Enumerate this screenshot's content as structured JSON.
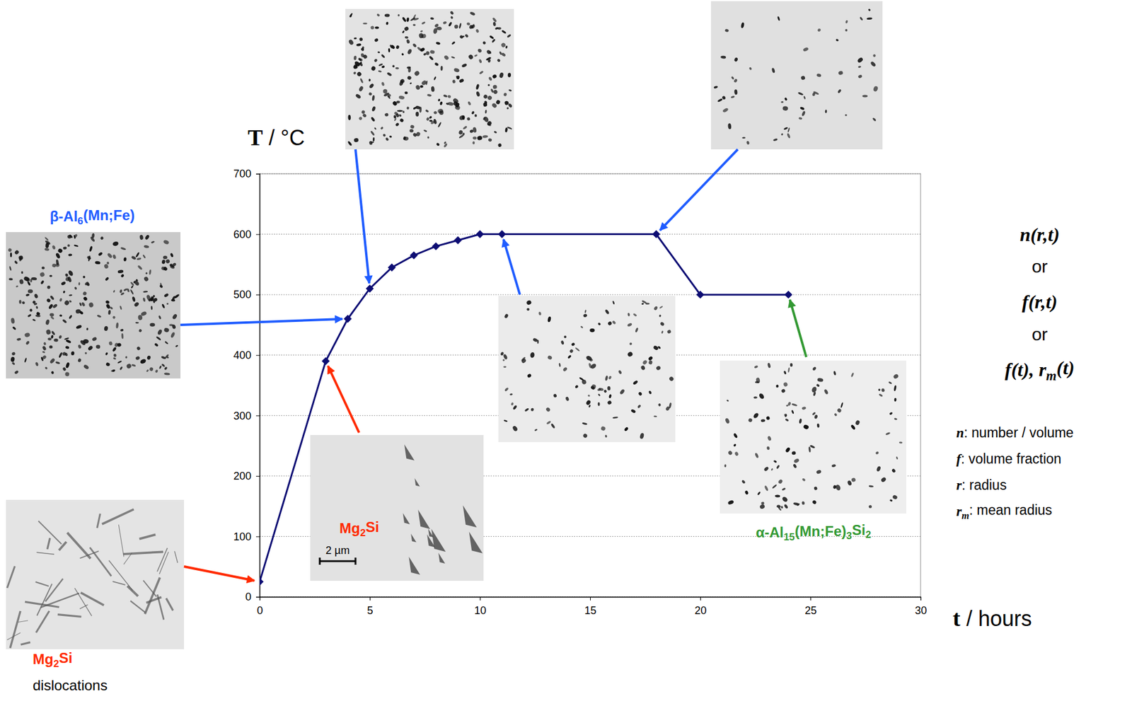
{
  "chart_data": {
    "type": "line",
    "x": [
      0,
      3,
      4,
      5,
      6,
      7,
      8,
      9,
      10,
      11,
      18,
      20,
      24
    ],
    "series": [
      {
        "color": "#0d0d73",
        "marker": "diamond",
        "line_style": "solid",
        "values": [
          25,
          390,
          460,
          510,
          545,
          565,
          580,
          590,
          600,
          600,
          600,
          500,
          500
        ]
      }
    ],
    "xlim": [
      0,
      30
    ],
    "xticks": [
      0,
      5,
      10,
      15,
      20,
      25,
      30
    ],
    "ylim": [
      0,
      700
    ],
    "yticks": [
      0,
      100,
      200,
      300,
      400,
      500,
      600,
      700
    ],
    "grid": true,
    "x_label": "t / hours",
    "y_label": "T / °C",
    "annotations": [
      {
        "x": 0,
        "y": 25,
        "color": "#ff2a00",
        "label": [
          [
            "Mg",
            {
              "sub": "2"
            },
            "Si"
          ],
          [
            "dislocations"
          ]
        ]
      },
      {
        "x": 3,
        "y": 390,
        "color": "#ff2a00",
        "label": [
          [
            "Mg",
            {
              "sub": "2"
            },
            "Si"
          ]
        ],
        "scale_bar": "2 µm"
      },
      {
        "x": 4,
        "y": 460,
        "color": "#1f5cff",
        "label": [
          [
            "β-Al",
            {
              "sub": "6"
            },
            "(Mn;Fe)"
          ]
        ]
      },
      {
        "x": 5,
        "y": 510,
        "color": "#1f5cff"
      },
      {
        "x": 11,
        "y": 600,
        "color": "#1f5cff"
      },
      {
        "x": 18,
        "y": 600,
        "color": "#1f5cff"
      },
      {
        "x": 24,
        "y": 500,
        "color": "#339933",
        "label": [
          [
            "α-Al",
            {
              "sub": "15"
            },
            "(Mn;Fe)",
            {
              "sub": "3"
            },
            "Si",
            {
              "sub": "2"
            }
          ]
        ]
      }
    ],
    "formulas": [
      [
        "n(r,t)"
      ],
      [
        "or"
      ],
      [
        "f(r,t)"
      ],
      [
        "or"
      ],
      [
        "f(t), r",
        {
          "sub": "m"
        },
        "(t)"
      ]
    ],
    "symbols": [
      {
        "symbol": [
          "n"
        ],
        "text": ": number / volume"
      },
      {
        "symbol": [
          "f"
        ],
        "text": ": volume fraction"
      },
      {
        "symbol": [
          "r"
        ],
        "text": ": radius"
      },
      {
        "symbol": [
          "r",
          {
            "sub": "m"
          }
        ],
        "text": ": mean radius"
      }
    ]
  }
}
